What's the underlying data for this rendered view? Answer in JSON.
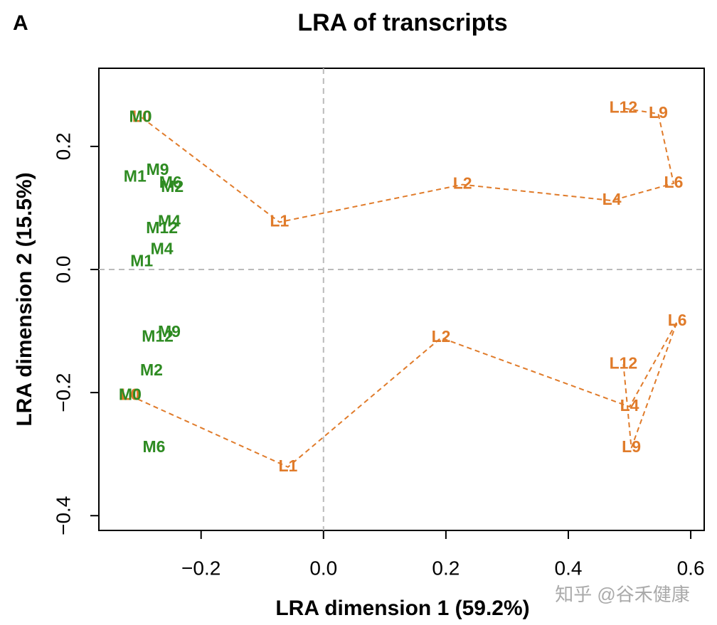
{
  "panel_label": "A",
  "watermark": "知乎 @谷禾健康",
  "chart_data": {
    "type": "scatter",
    "title": "LRA of transcripts",
    "x_label": "LRA dimension 1 (59.2%)",
    "y_label": "LRA dimension 2 (15.5%)",
    "xlim": [
      -0.367,
      0.622
    ],
    "ylim": [
      -0.424,
      0.327
    ],
    "xticks": [
      {
        "value": -0.2,
        "label": "−0.2"
      },
      {
        "value": 0,
        "label": "0.0"
      },
      0.2,
      0.4,
      0.6
    ],
    "yticks": [
      {
        "value": -0.4,
        "label": "−0.4"
      },
      {
        "value": -0.2,
        "label": "−0.2"
      },
      {
        "value": 0,
        "label": "0.0"
      },
      0.2
    ],
    "hlines": [
      0
    ],
    "vlines": [
      0
    ],
    "series": [
      {
        "color": "#e07b2a",
        "connected": true,
        "labels": [
          "L0",
          "L1",
          "L2",
          "L4",
          "L6",
          "L9",
          "L12"
        ],
        "x": [
          -0.297,
          -0.072,
          0.227,
          0.471,
          0.572,
          0.547,
          0.49
        ],
        "values": [
          0.247,
          0.077,
          0.138,
          0.112,
          0.14,
          0.253,
          0.262
        ]
      },
      {
        "color": "#e07b2a",
        "connected": true,
        "labels": [
          "L0",
          "L1",
          "L2",
          "L4",
          "L6",
          "L9",
          "L12"
        ],
        "x": [
          -0.316,
          -0.058,
          0.192,
          0.5,
          0.578,
          0.503,
          0.49
        ],
        "values": [
          -0.205,
          -0.321,
          -0.111,
          -0.223,
          -0.084,
          -0.29,
          -0.154
        ]
      },
      {
        "color": "#2e8b22",
        "connected": false,
        "labels": [
          "M0",
          "M1",
          "M2",
          "M4",
          "M6",
          "M9",
          "M12"
        ],
        "x": [
          -0.299,
          -0.308,
          -0.247,
          -0.252,
          -0.25,
          -0.271,
          -0.264
        ],
        "values": [
          0.247,
          0.15,
          0.133,
          0.077,
          0.14,
          0.161,
          0.066
        ]
      },
      {
        "color": "#2e8b22",
        "connected": false,
        "labels": [
          "M0",
          "M1",
          "M2",
          "M4",
          "M6",
          "M9",
          "M12"
        ],
        "x": [
          -0.316,
          -0.297,
          -0.281,
          -0.264,
          -0.277,
          -0.252,
          -0.271
        ],
        "values": [
          -0.205,
          0.012,
          -0.165,
          0.032,
          -0.29,
          -0.103,
          -0.11
        ]
      }
    ]
  }
}
